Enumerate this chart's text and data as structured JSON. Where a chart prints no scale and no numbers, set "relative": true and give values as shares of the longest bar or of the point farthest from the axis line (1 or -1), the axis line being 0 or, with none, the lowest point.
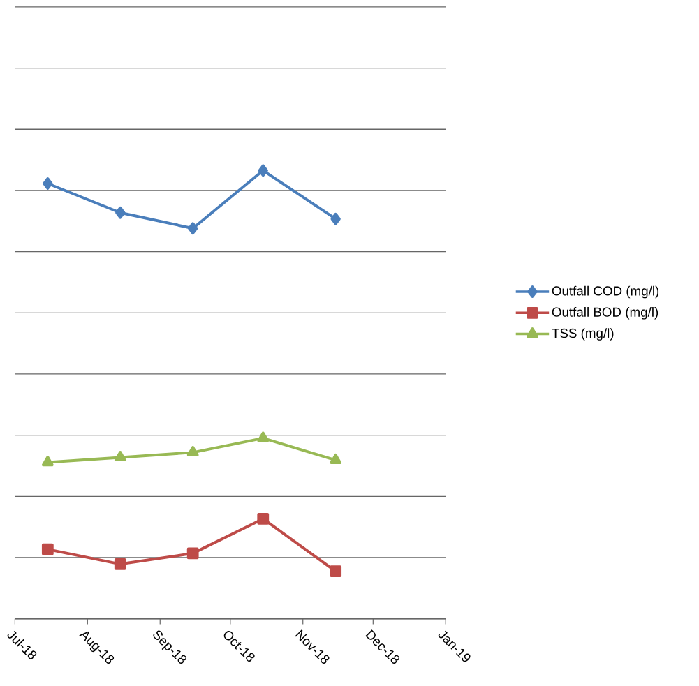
{
  "chart_data": {
    "type": "line",
    "relative": true,
    "grid": "y",
    "legend": "right",
    "line_style": "solid",
    "xlim": [
      "2018-07-01",
      "2019-01-01"
    ],
    "xticks": [
      {
        "value": "2018-07-01",
        "label": "Jul-18"
      },
      {
        "value": "2018-08-01",
        "label": "Aug-18"
      },
      {
        "value": "2018-09-01",
        "label": "Sep-18"
      },
      {
        "value": "2018-10-01",
        "label": "Oct-18"
      },
      {
        "value": "2018-11-01",
        "label": "Nov-18"
      },
      {
        "value": "2018-12-01",
        "label": "Dec-18"
      },
      {
        "value": "2019-01-01",
        "label": "Jan-19"
      }
    ],
    "x": [
      "2018-07-15",
      "2018-08-15",
      "2018-09-15",
      "2018-10-15",
      "2018-11-15"
    ],
    "series": [
      {
        "name": "Outfall COD  (mg/l)",
        "color": "#4a7ebb",
        "marker": "diamond",
        "values": [
          0.971,
          0.906,
          0.871,
          1.0,
          0.892
        ]
      },
      {
        "name": "Outfall BOD (mg/l)",
        "color": "#be4b48",
        "marker": "square",
        "values": [
          0.155,
          0.122,
          0.146,
          0.223,
          0.106
        ]
      },
      {
        "name": "TSS (mg/l)",
        "color": "#98b954",
        "marker": "triangle",
        "values": [
          0.349,
          0.36,
          0.371,
          0.403,
          0.354
        ]
      }
    ]
  }
}
